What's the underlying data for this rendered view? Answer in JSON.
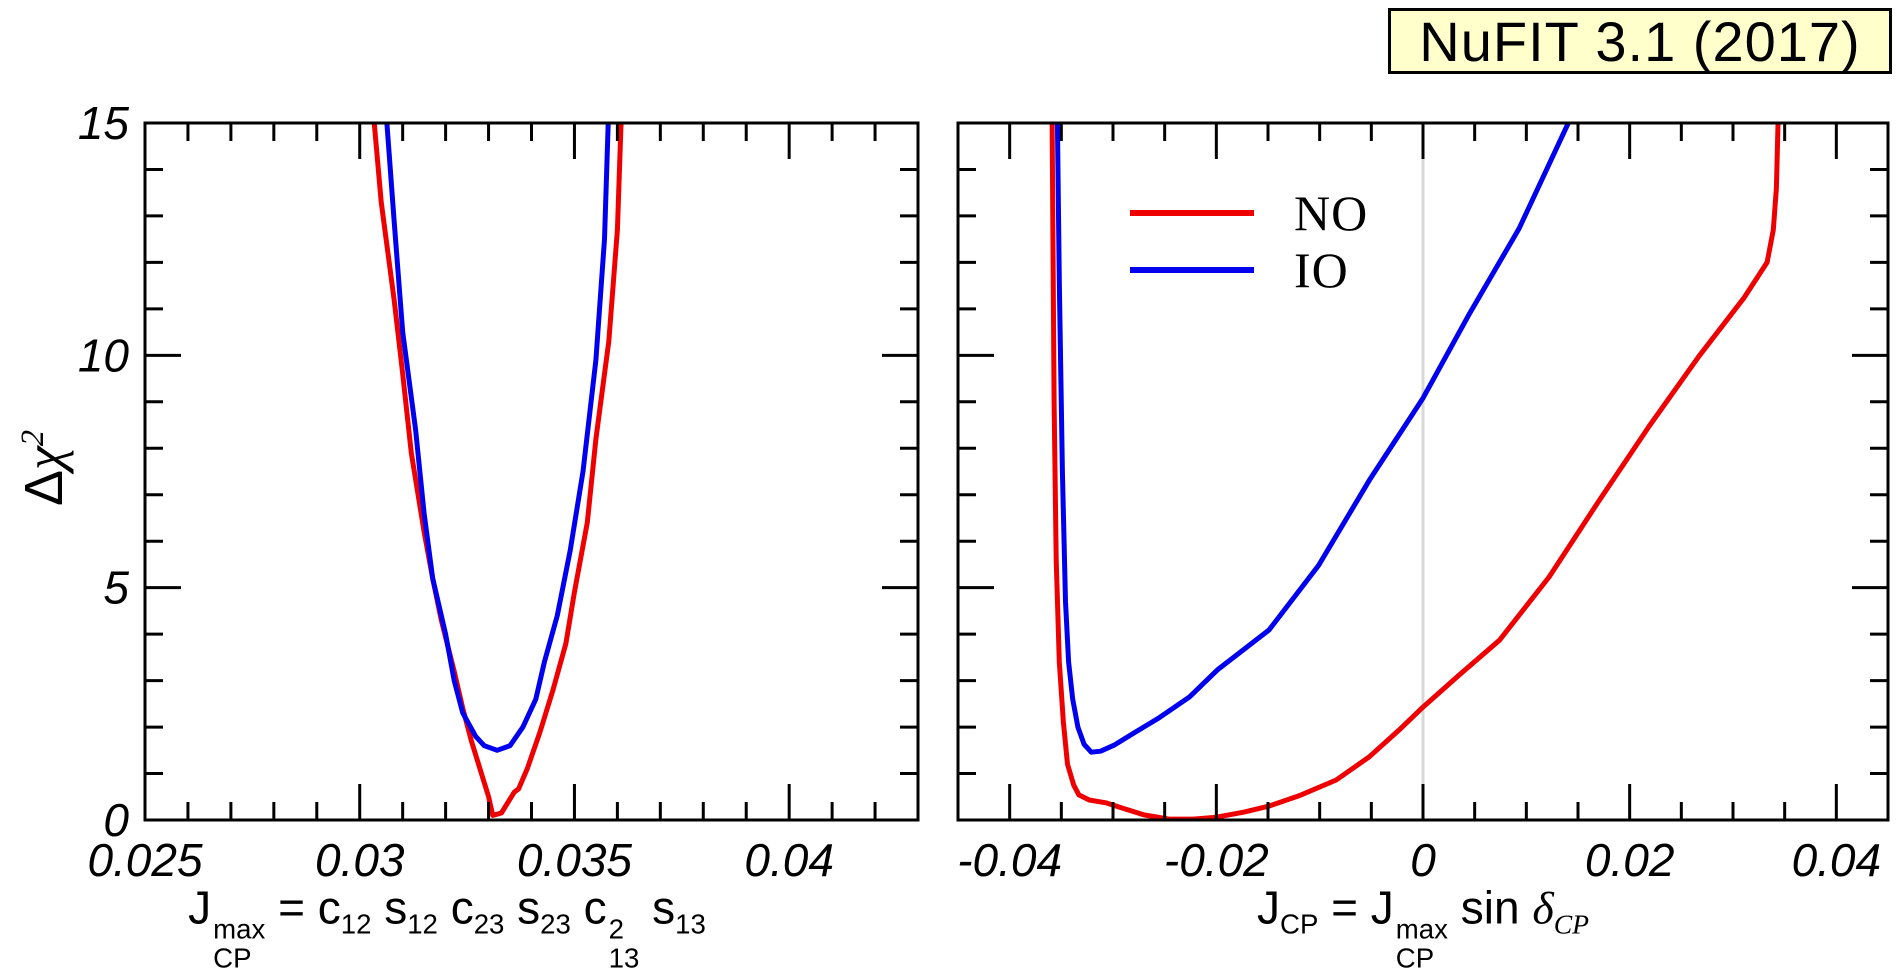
{
  "header": {
    "badge": "NuFIT 3.1 (2017)",
    "badge_bg": "#ffffcc"
  },
  "colors": {
    "no": "#ee0000",
    "io": "#0000ee",
    "axis": "#000000",
    "zero_line": "#d8d8d8"
  },
  "legend": [
    {
      "label": "NO",
      "color": "#ee0000"
    },
    {
      "label": "IO",
      "color": "#0000ee"
    }
  ],
  "ylabel": {
    "tokens": [
      {
        "text": "Δ"
      },
      {
        "text": "χ",
        "style": "greek",
        "sup": "2"
      }
    ]
  },
  "chart_data": [
    {
      "type": "line",
      "panel": "left",
      "title": "",
      "xlabel_tokens": [
        {
          "text": "J",
          "sup": "max",
          "sub": "CP"
        },
        {
          "text": " = c",
          "sub": "12"
        },
        {
          "text": " s",
          "sub": "12"
        },
        {
          "text": " c",
          "sub": "23"
        },
        {
          "text": " s",
          "sub": "23"
        },
        {
          "text": " c",
          "sup": "2",
          "sub": "13"
        },
        {
          "text": " s",
          "sub": "13"
        }
      ],
      "xlim": [
        0.025,
        0.043
      ],
      "ylim": [
        0,
        15
      ],
      "x_minor_step": 0.001,
      "x_major_ticks": [
        {
          "v": 0.025,
          "label": "0.025"
        },
        {
          "v": 0.03,
          "label": "0.03"
        },
        {
          "v": 0.035,
          "label": "0.035"
        },
        {
          "v": 0.04,
          "label": "0.04"
        }
      ],
      "y_minor_step": 1,
      "y_major_ticks": [
        {
          "v": 0,
          "label": "0"
        },
        {
          "v": 5,
          "label": "5"
        },
        {
          "v": 10,
          "label": "10"
        },
        {
          "v": 15,
          "label": "15"
        }
      ],
      "y_labels": true,
      "grid": false,
      "series": [
        {
          "name": "NO",
          "color": "#ee0000",
          "points": [
            [
              0.0303,
              15.4
            ],
            [
              0.0305,
              13.3
            ],
            [
              0.0308,
              11.2
            ],
            [
              0.031,
              9.6
            ],
            [
              0.0312,
              7.9
            ],
            [
              0.0315,
              6.2
            ],
            [
              0.0317,
              5.2
            ],
            [
              0.0319,
              4.3
            ],
            [
              0.0322,
              3.2
            ],
            [
              0.0324,
              2.4
            ],
            [
              0.0326,
              1.7
            ],
            [
              0.0328,
              1.1
            ],
            [
              0.033,
              0.5
            ],
            [
              0.0331,
              0.1
            ],
            [
              0.0333,
              0.15
            ],
            [
              0.0336,
              0.6
            ],
            [
              0.0337,
              0.67
            ],
            [
              0.0339,
              1.1
            ],
            [
              0.0342,
              1.9
            ],
            [
              0.0345,
              2.8
            ],
            [
              0.0348,
              3.8
            ],
            [
              0.035,
              4.9
            ],
            [
              0.0353,
              6.4
            ],
            [
              0.0355,
              8.2
            ],
            [
              0.0358,
              10.3
            ],
            [
              0.036,
              12.7
            ],
            [
              0.0361,
              15.4
            ]
          ]
        },
        {
          "name": "IO",
          "color": "#0000ee",
          "points": [
            [
              0.0306,
              15.4
            ],
            [
              0.0308,
              12.9
            ],
            [
              0.031,
              10.5
            ],
            [
              0.0313,
              8.4
            ],
            [
              0.0315,
              6.6
            ],
            [
              0.0317,
              5.2
            ],
            [
              0.032,
              4.0
            ],
            [
              0.0322,
              3.0
            ],
            [
              0.0324,
              2.3
            ],
            [
              0.0327,
              1.8
            ],
            [
              0.0329,
              1.6
            ],
            [
              0.0332,
              1.5
            ],
            [
              0.0335,
              1.6
            ],
            [
              0.0338,
              2.0
            ],
            [
              0.0341,
              2.6
            ],
            [
              0.0343,
              3.4
            ],
            [
              0.0346,
              4.4
            ],
            [
              0.0349,
              5.8
            ],
            [
              0.0352,
              7.5
            ],
            [
              0.0355,
              9.9
            ],
            [
              0.0357,
              12.5
            ],
            [
              0.0358,
              15.4
            ]
          ]
        }
      ]
    },
    {
      "type": "line",
      "panel": "right",
      "title": "",
      "xlabel_tokens": [
        {
          "text": "J",
          "sub": "CP"
        },
        {
          "text": " = J",
          "sup": "max",
          "sub": "CP"
        },
        {
          "text": " sin "
        },
        {
          "text": "δ",
          "style": "greek",
          "sub": "CP"
        }
      ],
      "xlim": [
        -0.045,
        0.045
      ],
      "ylim": [
        0,
        15
      ],
      "zero_line": 0,
      "x_minor_step": 0.005,
      "x_major_ticks": [
        {
          "v": -0.04,
          "label": "-0.04"
        },
        {
          "v": -0.02,
          "label": "-0.02"
        },
        {
          "v": 0,
          "label": "0"
        },
        {
          "v": 0.02,
          "label": "0.02"
        },
        {
          "v": 0.04,
          "label": "0.04"
        }
      ],
      "y_minor_step": 1,
      "y_major_ticks": [
        {
          "v": 0,
          "label": "0"
        },
        {
          "v": 5,
          "label": "5"
        },
        {
          "v": 10,
          "label": "10"
        },
        {
          "v": 15,
          "label": "15"
        }
      ],
      "y_labels": false,
      "grid": false,
      "legend_position": "upper-left-of-zero",
      "series": [
        {
          "name": "NO",
          "color": "#ee0000",
          "points": [
            [
              -0.0359,
              15.4
            ],
            [
              -0.0357,
              9.0
            ],
            [
              -0.0355,
              5.6
            ],
            [
              -0.0352,
              3.4
            ],
            [
              -0.0348,
              2.1
            ],
            [
              -0.0344,
              1.2
            ],
            [
              -0.0338,
              0.75
            ],
            [
              -0.0333,
              0.54
            ],
            [
              -0.0323,
              0.43
            ],
            [
              -0.0307,
              0.37
            ],
            [
              -0.0289,
              0.24
            ],
            [
              -0.027,
              0.11
            ],
            [
              -0.0246,
              0.02
            ],
            [
              -0.0222,
              0.02
            ],
            [
              -0.02,
              0.06
            ],
            [
              -0.0173,
              0.17
            ],
            [
              -0.0149,
              0.3
            ],
            [
              -0.012,
              0.52
            ],
            [
              -0.0084,
              0.86
            ],
            [
              -0.0052,
              1.36
            ],
            [
              -0.0023,
              1.94
            ],
            [
              0.0,
              2.43
            ],
            [
              0.0035,
              3.12
            ],
            [
              0.0074,
              3.87
            ],
            [
              0.0122,
              5.23
            ],
            [
              0.017,
              6.86
            ],
            [
              0.0219,
              8.48
            ],
            [
              0.0267,
              9.98
            ],
            [
              0.0311,
              11.25
            ],
            [
              0.0333,
              12.0
            ],
            [
              0.0339,
              12.7
            ],
            [
              0.0342,
              13.6
            ],
            [
              0.0344,
              15.4
            ]
          ]
        },
        {
          "name": "IO",
          "color": "#0000ee",
          "points": [
            [
              -0.0354,
              15.4
            ],
            [
              -0.0352,
              11.6
            ],
            [
              -0.0349,
              7.5
            ],
            [
              -0.0346,
              4.7
            ],
            [
              -0.0343,
              3.4
            ],
            [
              -0.0339,
              2.6
            ],
            [
              -0.0334,
              2.0
            ],
            [
              -0.0328,
              1.63
            ],
            [
              -0.0321,
              1.46
            ],
            [
              -0.0312,
              1.48
            ],
            [
              -0.0299,
              1.61
            ],
            [
              -0.028,
              1.87
            ],
            [
              -0.0256,
              2.19
            ],
            [
              -0.0226,
              2.65
            ],
            [
              -0.0199,
              3.23
            ],
            [
              -0.0149,
              4.09
            ],
            [
              -0.0101,
              5.48
            ],
            [
              -0.0052,
              7.31
            ],
            [
              0.0,
              9.08
            ],
            [
              0.0044,
              10.86
            ],
            [
              0.0093,
              12.73
            ],
            [
              0.0149,
              15.4
            ]
          ]
        }
      ]
    }
  ]
}
